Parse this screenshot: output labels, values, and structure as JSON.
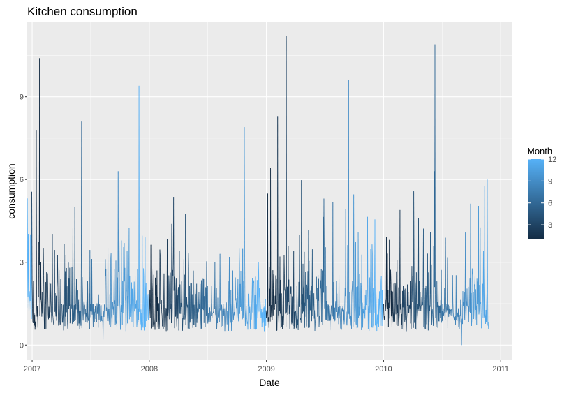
{
  "chart_data": {
    "type": "line",
    "title": "Kitchen consumption",
    "xlabel": "Date",
    "ylabel": "consumption",
    "x_ticks": [
      "2007",
      "2008",
      "2009",
      "2010",
      "2011"
    ],
    "x_range": [
      "2006-12-16",
      "2010-11-26"
    ],
    "y_ticks": [
      "0",
      "3",
      "6",
      "9"
    ],
    "ylim": [
      -0.55,
      11.7
    ],
    "grid": true,
    "background": "#ebebeb",
    "grid_color": "#ffffff",
    "color_scale": {
      "title": "Month",
      "min": 1,
      "max": 12,
      "labels": [
        "3",
        "6",
        "9",
        "12"
      ],
      "low_color": "#132b43",
      "high_color": "#56b1f7"
    },
    "legend_position": "right",
    "annotated_peaks": [
      {
        "date": "2007-01-24",
        "value": 10.4
      },
      {
        "date": "2007-01-14",
        "value": 7.8
      },
      {
        "date": "2007-06-04",
        "value": 8.1
      },
      {
        "date": "2007-11-30",
        "value": 9.4
      },
      {
        "date": "2008-10-24",
        "value": 7.9
      },
      {
        "date": "2009-02-05",
        "value": 8.3
      },
      {
        "date": "2009-03-04",
        "value": 11.2
      },
      {
        "date": "2009-09-14",
        "value": 9.6
      },
      {
        "date": "2010-06-10",
        "value": 10.9
      },
      {
        "date": "2010-06-08",
        "value": 6.3
      },
      {
        "date": "2010-11-20",
        "value": 6.0
      },
      {
        "date": "2007-08-10",
        "value": 0.2
      },
      {
        "date": "2010-09-01",
        "value": 0.0
      }
    ],
    "baseline_range": [
      0.5,
      1.5
    ]
  }
}
